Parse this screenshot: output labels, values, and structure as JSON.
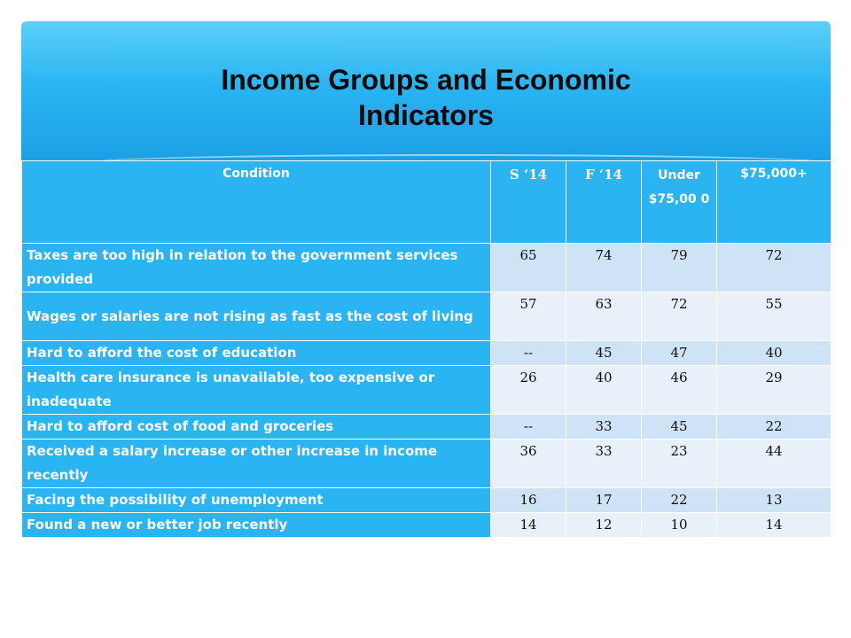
{
  "slide": {
    "title": "Income Groups and Economic\nIndicators"
  },
  "table": {
    "headers": [
      "Condition",
      "S ‘14",
      "F ‘14",
      "Under $75,00 0",
      "$75,000+"
    ],
    "rows": [
      {
        "condition": "Taxes are too high in relation to the government services provided",
        "values": [
          "65",
          "74",
          "79",
          "72"
        ]
      },
      {
        "condition": "Wages or salaries are not rising as fast as the cost of living",
        "values": [
          "57",
          "63",
          "72",
          "55"
        ]
      },
      {
        "condition": "Hard to afford the cost of education",
        "values": [
          "--",
          "45",
          "47",
          "40"
        ]
      },
      {
        "condition": "Health care insurance is unavailable, too expensive or inadequate",
        "values": [
          "26",
          "40",
          "46",
          "29"
        ]
      },
      {
        "condition": "Hard to afford cost of food and groceries",
        "values": [
          "--",
          "33",
          "45",
          "22"
        ]
      },
      {
        "condition": "Received a salary increase or other increase in income recently",
        "values": [
          "36",
          "33",
          "23",
          "44"
        ]
      },
      {
        "condition": "Facing the possibility of unemployment",
        "values": [
          "16",
          "17",
          "22",
          "13"
        ]
      },
      {
        "condition": "Found a new or better job recently",
        "values": [
          "14",
          "12",
          "10",
          "14"
        ]
      }
    ]
  },
  "colors": {
    "header_blue": "#2ab4f2",
    "row_light": "#cfe3f6",
    "row_lighter": "#e8f1fa"
  }
}
